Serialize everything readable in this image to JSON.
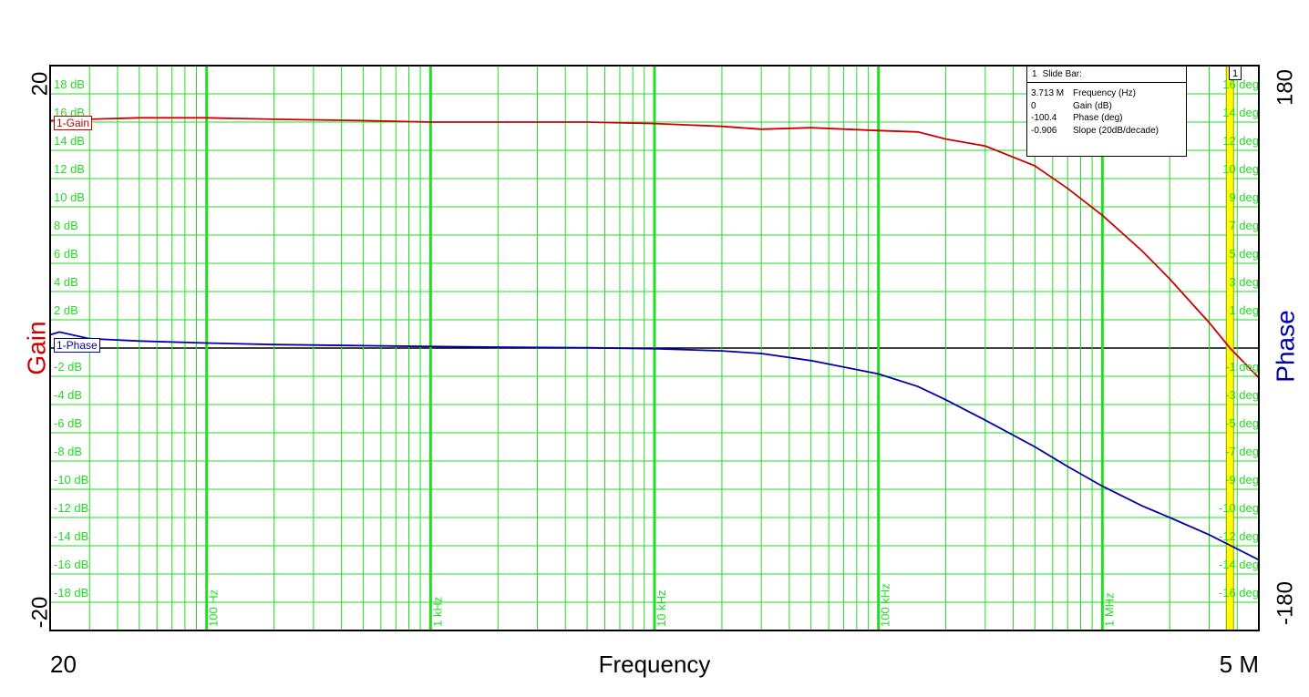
{
  "colors": {
    "grid": "#22dd22",
    "gain": "#cc0000",
    "phase": "#0000a8",
    "marker": "#ffff00",
    "axis": "#000000"
  },
  "chart_data": {
    "type": "line",
    "xlabel": "Frequency",
    "x_scale": "log",
    "x_range_labels": {
      "min": "20",
      "max": "5 M"
    },
    "xlim_hz": [
      20,
      5000000
    ],
    "decade_labels": [
      {
        "hz": 100,
        "label": "100 Hz"
      },
      {
        "hz": 1000,
        "label": "1 kHz"
      },
      {
        "hz": 10000,
        "label": "10 kHz"
      },
      {
        "hz": 100000,
        "label": "100 kHz"
      },
      {
        "hz": 1000000,
        "label": "1 MHz"
      }
    ],
    "left_axis": {
      "label": "Gain",
      "min_label": "-20",
      "max_label": "20",
      "ylim": [
        -20,
        20
      ]
    },
    "right_axis": {
      "label": "Phase",
      "min_label": "-180",
      "max_label": "180",
      "ylim": [
        -180,
        180
      ]
    },
    "gain_tick_labels": [
      "18 dB",
      "16 dB",
      "14 dB",
      "12 dB",
      "10 dB",
      "8 dB",
      "6 dB",
      "4 dB",
      "2 dB",
      "-2 dB",
      "-4 dB",
      "-6 dB",
      "-8 dB",
      "-10 dB",
      "-12 dB",
      "-14 dB",
      "-16 dB",
      "-18 dB"
    ],
    "gain_tick_values": [
      18,
      16,
      14,
      12,
      10,
      8,
      6,
      4,
      2,
      -2,
      -4,
      -6,
      -8,
      -10,
      -12,
      -14,
      -16,
      -18
    ],
    "phase_tick_labels": [
      "16 deg",
      "14 deg",
      "12 deg",
      "10 deg",
      "9 deg",
      "7 deg",
      "5 deg",
      "3 deg",
      "1 deg",
      "-1 deg",
      "-3 deg",
      "-5 deg",
      "-7 deg",
      "-9 deg",
      "-10 deg",
      "-12 deg",
      "-14 deg",
      "-16 deg"
    ],
    "grid": true,
    "series": [
      {
        "name": "1-Gain",
        "axis": "left",
        "x": [
          20,
          30,
          50,
          100,
          200,
          500,
          1000,
          2000,
          5000,
          10000,
          20000,
          30000,
          50000,
          100000,
          150000,
          200000,
          300000,
          500000,
          700000,
          1000000,
          1500000,
          2000000,
          3000000,
          3713000,
          5000000
        ],
        "y": [
          16.1,
          16.2,
          16.3,
          16.3,
          16.2,
          16.1,
          16.0,
          16.0,
          16.0,
          15.9,
          15.7,
          15.5,
          15.6,
          15.4,
          15.3,
          14.8,
          14.3,
          12.9,
          11.3,
          9.4,
          6.9,
          4.9,
          1.8,
          0,
          -2.1
        ]
      },
      {
        "name": "1-Phase",
        "axis": "right",
        "x": [
          20,
          22,
          30,
          50,
          100,
          200,
          500,
          1000,
          2000,
          5000,
          10000,
          20000,
          30000,
          50000,
          100000,
          150000,
          200000,
          300000,
          500000,
          700000,
          1000000,
          1500000,
          2000000,
          3000000,
          3713000,
          5000000
        ],
        "y": [
          8.5,
          10.2,
          6.0,
          4.5,
          3.2,
          2.2,
          1.5,
          1.0,
          0.6,
          0.2,
          -0.4,
          -1.8,
          -3.5,
          -8.0,
          -16.5,
          -24.5,
          -33.0,
          -46.0,
          -63.0,
          -75.5,
          -88.0,
          -100.5,
          -108.0,
          -119.0,
          -100.4,
          -135.0
        ]
      }
    ],
    "marker": {
      "label": "1",
      "frequency_hz": 3713000
    }
  },
  "slide_bar": {
    "index": "1",
    "title": "Slide Bar:",
    "rows": [
      {
        "value": "3.713 M",
        "label": "Frequency (Hz)"
      },
      {
        "value": "0",
        "label": "Gain (dB)"
      },
      {
        "value": "-100.4",
        "label": "Phase (deg)"
      },
      {
        "value": "-0.906",
        "label": "Slope (20dB/decade)"
      }
    ]
  }
}
